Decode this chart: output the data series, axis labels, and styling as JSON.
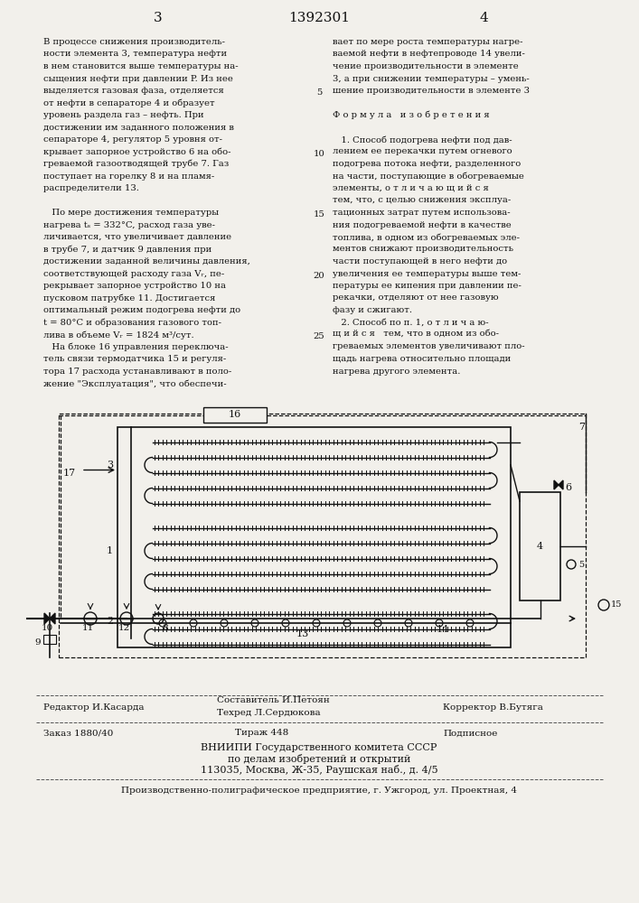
{
  "bg_color": "#f5f5f0",
  "page_num_left": "3",
  "page_num_center": "1392301",
  "page_num_right": "4",
  "left_col": [
    "В процессе снижения производитель-",
    "ности элемента 3, температура нефти",
    "в нем становится выше температуры на-",
    "сыщения нефти при давлении P. Из нее",
    "выделяется газовая фаза, отделяется",
    "от нефти в сепараторе 4 и образует",
    "уровень раздела газ – нефть. При",
    "достижении им заданного положения в",
    "сепараторе 4, регулятор 5 уровня от-",
    "крывает запорное устройство 6 на обо-",
    "греваемой газоотводящей трубе 7. Газ",
    "поступает на горелку 8 и на пламя-",
    "распределители 13.",
    "",
    "   По мере достижения температуры",
    "нагрева tₛ = 332°C, расход газа уве-",
    "личивается, что увеличивает давление",
    "в трубе 7, и датчик 9 давления при",
    "достижении заданной величины давления,",
    "соответствующей расходу газа Vᵣ, пе-",
    "рекрывает запорное устройство 10 на",
    "пусковом патрубке 11. Достигается",
    "оптимальный режим подогрева нефти до",
    "t = 80°C и образования газового топ-",
    "лива в объеме Vᵣ = 1824 м³/сут.",
    "   На блоке 16 управления переключа-",
    "тель связи термодатчика 15 и регуля-",
    "тора 17 расхода устанавливают в поло-",
    "жение \"Эксплуатация\", что обеспечи-"
  ],
  "right_col": [
    "вает по мере роста температуры нагре-",
    "ваемой нефти в нефтепроводе 14 увели-",
    "чение производительности в элементе",
    "3, а при снижении температуры – умень-",
    "шение производительности в элементе 3",
    "",
    "Ф о р м у л а   и з о б р е т е н и я",
    "",
    "   1. Способ подогрева нефти под дав-",
    "лением ее перекачки путем огневого",
    "подогрева потока нефти, разделенного",
    "на части, поступающие в обогреваемые",
    "элементы, о т л и ч а ю щ и й с я",
    "тем, что, с целью снижения эксплуа-",
    "тационных затрат путем использова-",
    "ния подогреваемой нефти в качестве",
    "топлива, в одном из обогреваемых эле-",
    "ментов снижают производительность",
    "части поступающей в него нефти до",
    "увеличения ее температуры выше тем-",
    "пературы ее кипения при давлении пе-",
    "рекачки, отделяют от нее газовую",
    "фазу и сжигают.",
    "   2. Способ по п. 1, о т л и ч а ю-",
    "щ и й с я   тем, что в одном из обо-",
    "греваемых элементов увеличивают пло-",
    "щадь нагрева относительно площади",
    "нагрева другого элемента."
  ]
}
